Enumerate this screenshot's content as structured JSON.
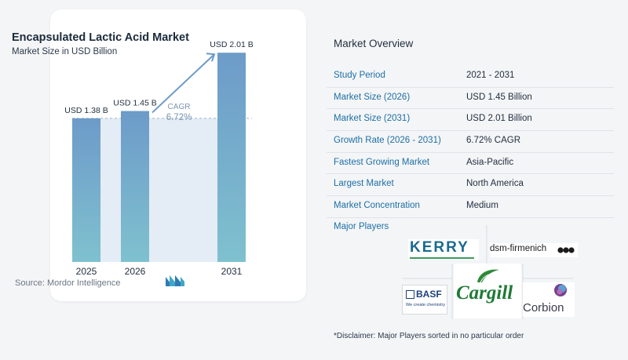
{
  "left_panel": {
    "title": "Encapsulated Lactic Acid Market",
    "subtitle": "Market Size in USD Billion",
    "source": "Source:  Mordor Intelligence"
  },
  "chart_data": {
    "type": "bar",
    "title": "Encapsulated Lactic Acid Market",
    "subtitle": "Market Size in USD Billion",
    "categories": [
      "2025",
      "2026",
      "2031"
    ],
    "values": [
      1.38,
      1.45,
      2.01
    ],
    "data_labels": [
      "USD 1.38 B",
      "USD 1.45 B",
      "USD 2.01 B"
    ],
    "annotation": {
      "label": "CAGR",
      "value": "6.72%"
    },
    "ylim": [
      0,
      2.2
    ],
    "grid": false,
    "colors": {
      "bar_top": "#6d9bc9",
      "bar_bottom": "#7fc1cf",
      "arrow": "#6d9bc9",
      "shade": "#e4ecf5",
      "cagr_text": "#7b95b1"
    }
  },
  "overview": {
    "title": "Market Overview",
    "rows": [
      {
        "label": "Study Period",
        "value": "2021 - 2031"
      },
      {
        "label": "Market Size (2026)",
        "value": "USD 1.45 Billion"
      },
      {
        "label": "Market Size (2031)",
        "value": "USD 2.01 Billion"
      },
      {
        "label": "Growth Rate (2026 - 2031)",
        "value": "6.72% CAGR"
      },
      {
        "label": "Fastest Growing Market",
        "value": "Asia-Pacific"
      },
      {
        "label": "Largest Market",
        "value": "North America"
      },
      {
        "label": "Market Concentration",
        "value": "Medium"
      }
    ],
    "players_title": "Major Players",
    "players": {
      "kerry": "KERRY",
      "dsm": "dsm-firmenich",
      "basf": "BASF",
      "basf_tagline": "We create chemistry",
      "cargill": "Cargill",
      "corbion": "Corbion"
    },
    "disclaimer": "*Disclaimer: Major Players sorted in no particular order"
  }
}
